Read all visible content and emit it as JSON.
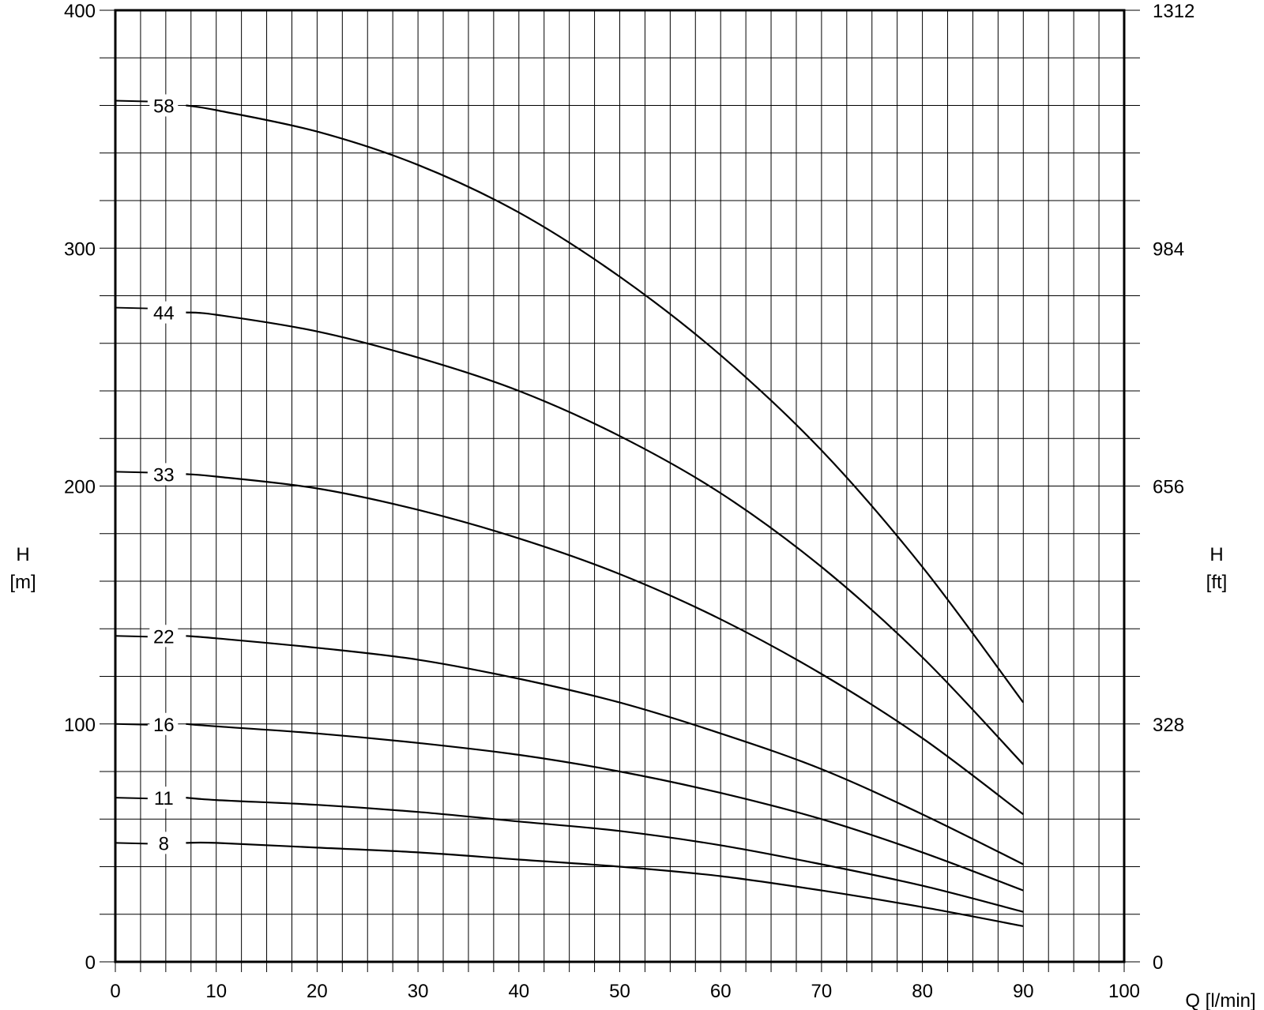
{
  "chart_data": {
    "type": "line",
    "title": "",
    "xlabel": "Q [l/min]",
    "ylabel_left": {
      "symbol": "H",
      "unit": "[m]"
    },
    "ylabel_right": {
      "symbol": "H",
      "unit": "[ft]"
    },
    "xlim": [
      0,
      100
    ],
    "ylim": [
      0,
      400
    ],
    "grid": true,
    "x_ticks": [
      {
        "value": 0,
        "label": "0"
      },
      {
        "value": 10,
        "label": "10"
      },
      {
        "value": 20,
        "label": "20"
      },
      {
        "value": 30,
        "label": "30"
      },
      {
        "value": 40,
        "label": "40"
      },
      {
        "value": 50,
        "label": "50"
      },
      {
        "value": 60,
        "label": "60"
      },
      {
        "value": 70,
        "label": "70"
      },
      {
        "value": 80,
        "label": "80"
      },
      {
        "value": 90,
        "label": "90"
      },
      {
        "value": 100,
        "label": "100"
      }
    ],
    "y_ticks_left": [
      {
        "value": 0,
        "label": "0"
      },
      {
        "value": 100,
        "label": "100"
      },
      {
        "value": 200,
        "label": "200"
      },
      {
        "value": 300,
        "label": "300"
      },
      {
        "value": 400,
        "label": "400"
      }
    ],
    "y_ticks_right": [
      {
        "value": 0,
        "label": "0"
      },
      {
        "value": 100,
        "label": "328"
      },
      {
        "value": 200,
        "label": "656"
      },
      {
        "value": 300,
        "label": "984"
      },
      {
        "value": 400,
        "label": "1312"
      }
    ],
    "series": [
      {
        "name": "58",
        "start_value": 362,
        "x": [
          7,
          10,
          20,
          30,
          40,
          50,
          60,
          70,
          80,
          90
        ],
        "y": [
          360,
          358,
          349,
          335,
          315,
          288,
          255,
          215,
          166,
          109
        ]
      },
      {
        "name": "44",
        "start_value": 275,
        "x": [
          7,
          10,
          20,
          30,
          40,
          50,
          60,
          70,
          80,
          90
        ],
        "y": [
          273,
          272,
          265,
          254,
          240,
          221,
          197,
          166,
          128,
          83
        ]
      },
      {
        "name": "33",
        "start_value": 206,
        "x": [
          7,
          10,
          20,
          30,
          40,
          50,
          60,
          70,
          80,
          90
        ],
        "y": [
          205,
          204,
          199,
          190,
          178,
          163,
          144,
          121,
          94,
          62
        ]
      },
      {
        "name": "22",
        "start_value": 137,
        "x": [
          7,
          10,
          20,
          30,
          40,
          50,
          60,
          70,
          80,
          90
        ],
        "y": [
          137,
          136,
          132,
          127,
          119,
          109,
          96,
          81,
          62,
          41
        ]
      },
      {
        "name": "16",
        "start_value": 100,
        "x": [
          7,
          10,
          20,
          30,
          40,
          50,
          60,
          70,
          80,
          90
        ],
        "y": [
          100,
          99,
          96,
          92,
          87,
          80,
          71,
          60,
          46,
          30
        ]
      },
      {
        "name": "11",
        "start_value": 69,
        "x": [
          7,
          10,
          20,
          30,
          40,
          50,
          60,
          70,
          80,
          90
        ],
        "y": [
          69,
          68,
          66,
          63,
          59,
          55,
          49,
          41,
          32,
          21
        ]
      },
      {
        "name": "8",
        "start_value": 50,
        "x": [
          7,
          10,
          20,
          30,
          40,
          50,
          60,
          70,
          80,
          90
        ],
        "y": [
          50,
          50,
          48,
          46,
          43,
          40,
          36,
          30,
          23,
          15
        ]
      }
    ]
  }
}
